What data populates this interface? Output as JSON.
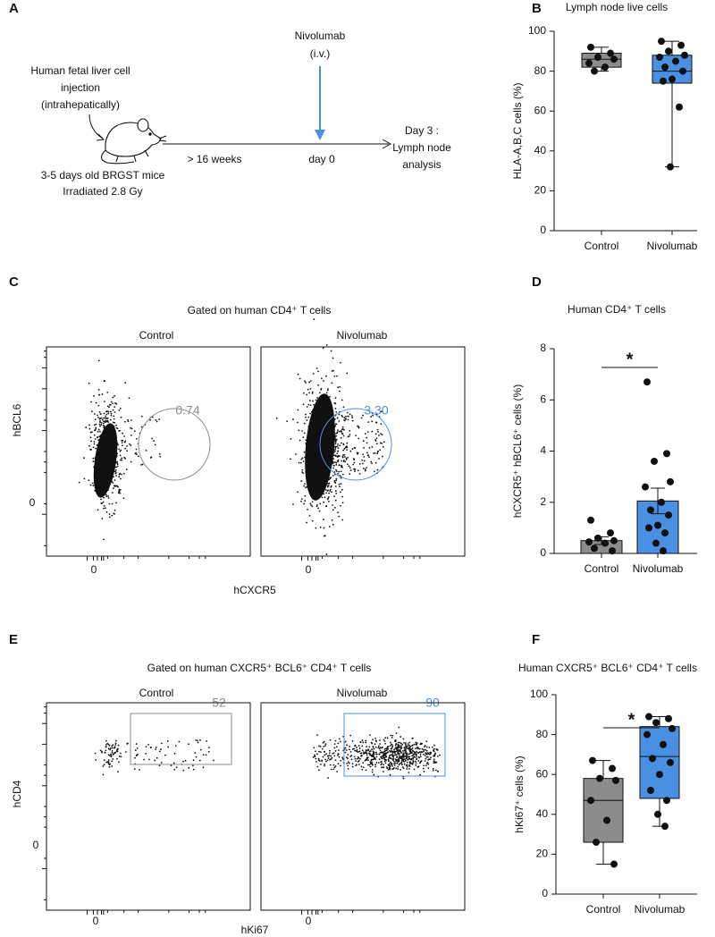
{
  "panel_labels": [
    "A",
    "B",
    "C",
    "D",
    "E",
    "F"
  ],
  "schematic": {
    "injection": [
      "Human fetal liver cell",
      "injection",
      "(intrahepatically)"
    ],
    "mice": [
      "3-5 days old BRGST mice",
      "Irradiated 2.8 Gy"
    ],
    "treatment": [
      "Nivolumab",
      "(i.v.)"
    ],
    "interval": "> 16 weeks",
    "day0": "day 0",
    "endpoint": [
      "Day 3 :",
      "Lymph node",
      "analysis"
    ]
  },
  "flow_c": {
    "title": "Gated on human CD4⁺ T cells",
    "panels": [
      {
        "name": "Control",
        "gate_value": "0.74",
        "color": "#8c8c8c"
      },
      {
        "name": "Nivolumab",
        "gate_value": "3.30",
        "color": "#4a90e2"
      }
    ],
    "x_label": "hCXCR5",
    "y_label": "hBCL6",
    "zero": "0"
  },
  "flow_e": {
    "title": "Gated on human CXCR5⁺ BCL6⁺ CD4⁺ T cells",
    "panels": [
      {
        "name": "Control",
        "gate_value": "52",
        "color": "#8c8c8c"
      },
      {
        "name": "Nivolumab",
        "gate_value": "90",
        "color": "#4a90e2"
      }
    ],
    "x_label": "hKi67",
    "y_label": "hCD4",
    "zero": "0"
  },
  "chart_data": [
    {
      "type": "box",
      "title": "Lymph node live cells",
      "y_label": "HLA-A,B,C cells (%)",
      "categories": [
        "Control",
        "Nivolumab"
      ],
      "ylim": [
        0,
        100
      ],
      "yticks": [
        0,
        20,
        40,
        60,
        80,
        100
      ],
      "boxes": [
        {
          "color": "#8c8c8c",
          "min": 80,
          "q1": 82,
          "median": 86,
          "q3": 89,
          "max": 92,
          "points": [
            92,
            89,
            87,
            86,
            84,
            82,
            80
          ]
        },
        {
          "color": "#4a90e2",
          "min": 32,
          "q1": 74,
          "median": 80,
          "q3": 88,
          "max": 95,
          "points": [
            95,
            93,
            90,
            88,
            87,
            85,
            82,
            80,
            76,
            75,
            62,
            32
          ]
        }
      ]
    },
    {
      "type": "bar",
      "title": "Human CD4⁺ T cells",
      "y_label": "hCXCR5⁺ hBCL6⁺ cells (%)",
      "categories": [
        "Control",
        "Nivolumab"
      ],
      "ylim": [
        0,
        8
      ],
      "yticks": [
        0,
        2,
        4,
        6,
        8
      ],
      "values": [
        0.5,
        2.05
      ],
      "errors": [
        0.15,
        0.5
      ],
      "colors": [
        "#8c8c8c",
        "#4a90e2"
      ],
      "points": [
        [
          1.3,
          0.8,
          0.6,
          0.5,
          0.45,
          0.4,
          0.2,
          0.1
        ],
        [
          6.7,
          3.9,
          3.6,
          2.8,
          2.6,
          2.0,
          1.7,
          1.5,
          1.1,
          1.0,
          0.8,
          0.4,
          0.1
        ]
      ],
      "significance": "*"
    },
    {
      "type": "box",
      "title": "Human CXCR5⁺ BCL6⁺ CD4⁺ T cells",
      "y_label": "hKi67⁺ cells (%)",
      "categories": [
        "Control",
        "Nivolumab"
      ],
      "ylim": [
        0,
        100
      ],
      "yticks": [
        0,
        20,
        40,
        60,
        80,
        100
      ],
      "boxes": [
        {
          "color": "#8c8c8c",
          "min": 15,
          "q1": 26,
          "median": 47,
          "q3": 58,
          "max": 67,
          "points": [
            67,
            63,
            58,
            57,
            47,
            37,
            26,
            15
          ]
        },
        {
          "color": "#4a90e2",
          "min": 34,
          "q1": 48,
          "median": 69,
          "q3": 84,
          "max": 89,
          "points": [
            89,
            88,
            86,
            83,
            80,
            75,
            68,
            66,
            60,
            52,
            47,
            40,
            34
          ]
        }
      ],
      "significance": "*"
    }
  ]
}
